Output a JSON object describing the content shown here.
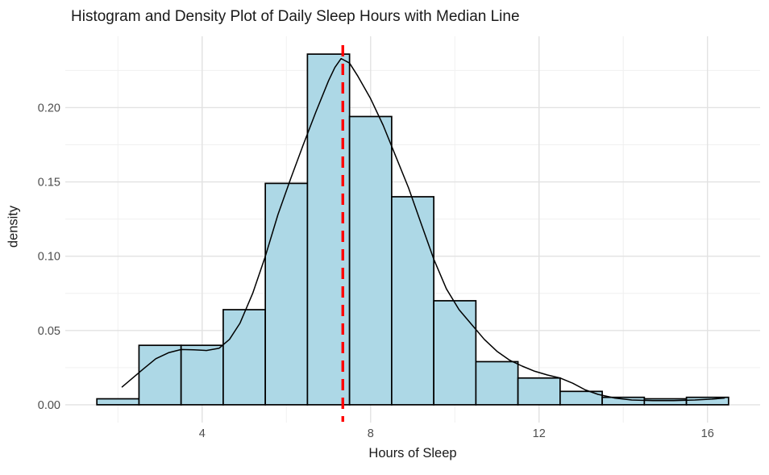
{
  "chart_data": {
    "type": "bar",
    "subtype": "histogram-with-density",
    "title": "Histogram and Density Plot of Daily Sleep Hours with Median Line",
    "xlabel": "Hours of Sleep",
    "ylabel": "density",
    "xlim": [
      0.75,
      17.25
    ],
    "ylim": [
      -0.012,
      0.248
    ],
    "grid": true,
    "x_ticks": {
      "major": [
        4,
        8,
        12,
        16
      ],
      "minor": [
        2,
        6,
        10,
        14
      ],
      "labels": [
        "4",
        "8",
        "12",
        "16"
      ]
    },
    "y_ticks": {
      "major": [
        0,
        0.05,
        0.1,
        0.15,
        0.2
      ],
      "minor": [
        0.025,
        0.075,
        0.125,
        0.175,
        0.225
      ],
      "labels": [
        "0.00",
        "0.05",
        "0.10",
        "0.15",
        "0.20"
      ]
    },
    "histogram": {
      "binwidth": 1,
      "bin_centers": [
        2,
        3,
        4,
        5,
        6,
        7,
        8,
        9,
        10,
        11,
        12,
        13,
        14,
        15,
        16
      ],
      "densities": [
        0.004,
        0.04,
        0.04,
        0.064,
        0.149,
        0.236,
        0.194,
        0.14,
        0.07,
        0.029,
        0.018,
        0.009,
        0.005,
        0.004,
        0.005
      ]
    },
    "density_curve": {
      "points": [
        [
          2.1,
          0.012
        ],
        [
          2.35,
          0.018
        ],
        [
          2.6,
          0.024
        ],
        [
          2.9,
          0.031
        ],
        [
          3.2,
          0.035
        ],
        [
          3.5,
          0.0372
        ],
        [
          3.8,
          0.037
        ],
        [
          4.1,
          0.0365
        ],
        [
          4.4,
          0.038
        ],
        [
          4.65,
          0.044
        ],
        [
          4.9,
          0.055
        ],
        [
          5.2,
          0.075
        ],
        [
          5.5,
          0.1
        ],
        [
          5.8,
          0.128
        ],
        [
          6.1,
          0.152
        ],
        [
          6.4,
          0.175
        ],
        [
          6.7,
          0.197
        ],
        [
          7.0,
          0.218
        ],
        [
          7.15,
          0.227
        ],
        [
          7.3,
          0.233
        ],
        [
          7.5,
          0.23
        ],
        [
          7.7,
          0.221
        ],
        [
          8.0,
          0.206
        ],
        [
          8.3,
          0.188
        ],
        [
          8.6,
          0.167
        ],
        [
          8.9,
          0.146
        ],
        [
          9.2,
          0.122
        ],
        [
          9.5,
          0.098
        ],
        [
          9.8,
          0.078
        ],
        [
          10.1,
          0.064
        ],
        [
          10.4,
          0.054
        ],
        [
          10.7,
          0.044
        ],
        [
          11.0,
          0.036
        ],
        [
          11.3,
          0.03
        ],
        [
          11.6,
          0.026
        ],
        [
          11.9,
          0.0225
        ],
        [
          12.2,
          0.02
        ],
        [
          12.5,
          0.018
        ],
        [
          12.8,
          0.0145
        ],
        [
          13.1,
          0.01
        ],
        [
          13.4,
          0.007
        ],
        [
          13.8,
          0.0045
        ],
        [
          14.2,
          0.0032
        ],
        [
          14.7,
          0.0028
        ],
        [
          15.2,
          0.0028
        ],
        [
          15.7,
          0.0032
        ],
        [
          16.1,
          0.0038
        ],
        [
          16.4,
          0.0045
        ]
      ]
    },
    "median_line": {
      "x": 7.34,
      "style": "dashed",
      "color": "#FF0000"
    },
    "colors": {
      "background": "#FFFFFF",
      "bar_fill": "#ADD8E6",
      "bar_stroke": "#000000",
      "curve": "#000000",
      "grid_major": "#E2E2E2",
      "grid_minor": "#F0F0F0",
      "axis_text": "#4D4D4D",
      "title_text": "#1A1A1A"
    }
  }
}
